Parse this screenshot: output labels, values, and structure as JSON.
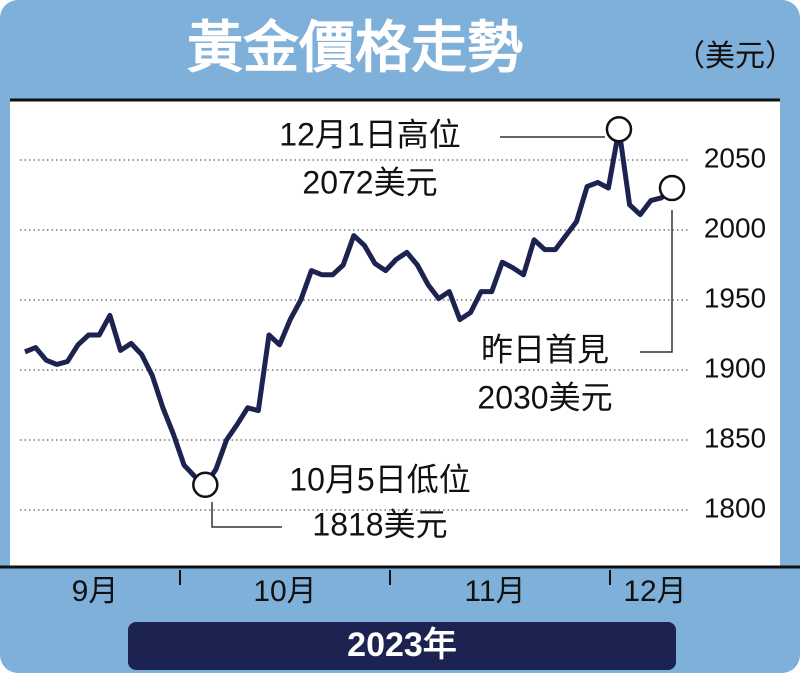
{
  "chart_data": {
    "type": "line",
    "title": "黃金價格走勢",
    "unit": "（美元）",
    "values": [
      1913,
      1916,
      1907,
      1904,
      1906,
      1918,
      1925,
      1925,
      1939,
      1914,
      1919,
      1911,
      1896,
      1873,
      1854,
      1832,
      1824,
      1818,
      1829,
      1850,
      1861,
      1873,
      1871,
      1925,
      1918,
      1936,
      1950,
      1971,
      1968,
      1968,
      1975,
      1996,
      1989,
      1976,
      1971,
      1979,
      1984,
      1975,
      1961,
      1951,
      1956,
      1936,
      1941,
      1956,
      1956,
      1977,
      1973,
      1968,
      1993,
      1986,
      1986,
      1996,
      2006,
      2031,
      2034,
      2030,
      2072,
      2018,
      2011,
      2021,
      2023,
      2030
    ],
    "color": "#1c2350",
    "months": [
      "9月",
      "10月",
      "11月",
      "12月"
    ],
    "year": "2023年",
    "ylim": [
      1750,
      2100
    ],
    "yticks": [
      1800,
      1850,
      1900,
      1950,
      2000,
      2050
    ],
    "grid": true,
    "annotations": {
      "high": [
        "12月1日高位",
        "2072美元"
      ],
      "low": [
        "10月5日低位",
        "1818美元"
      ],
      "latest": [
        "昨日首見",
        "2030美元"
      ]
    }
  }
}
